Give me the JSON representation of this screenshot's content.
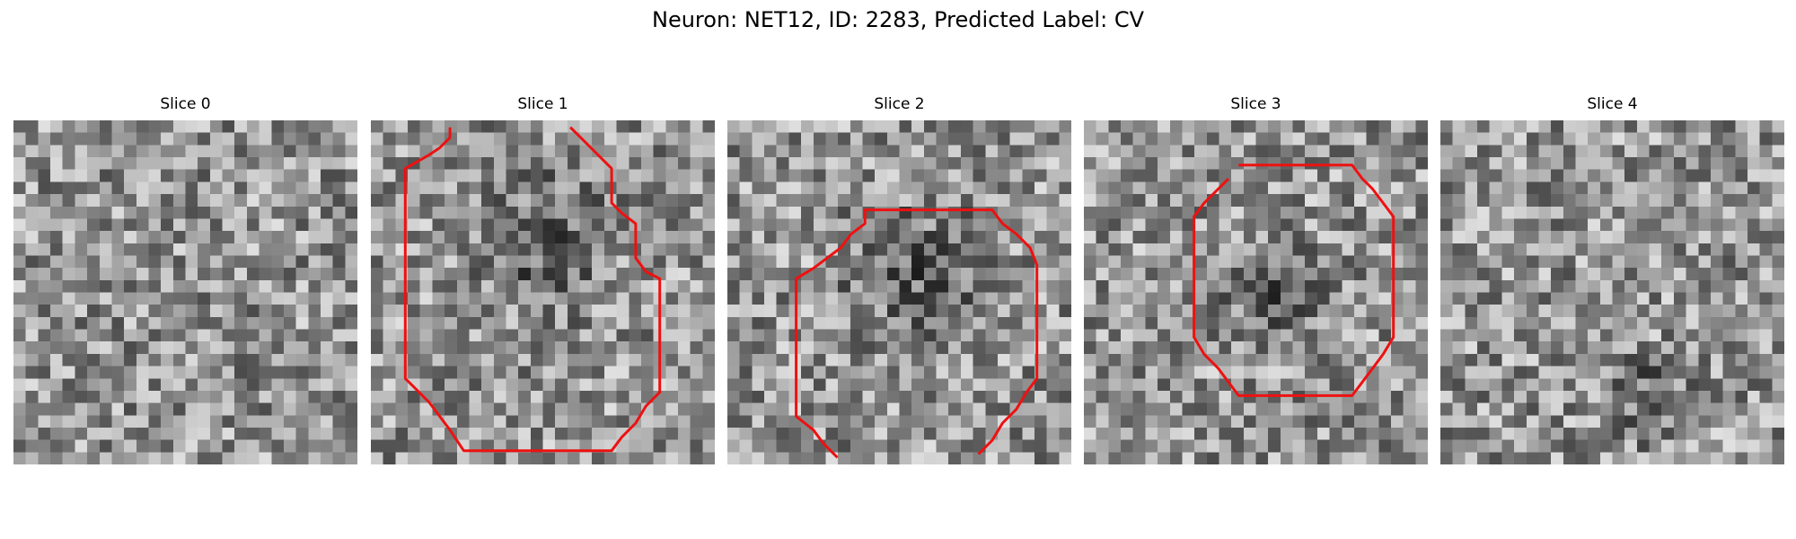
{
  "figure": {
    "title": "Neuron: NET12, ID: 2283, Predicted Label: CV",
    "outline_color": "#ee1111"
  },
  "slices": [
    {
      "title": "Slice 0",
      "dark_blob": null,
      "contour": null
    },
    {
      "title": "Slice 1",
      "dark_blob": [
        0.49,
        0.36,
        0.3
      ],
      "contour": [
        [
          0.23,
          0.02
        ],
        [
          0.23,
          0.05
        ],
        [
          0.2,
          0.08
        ],
        [
          0.17,
          0.1
        ],
        [
          0.1,
          0.14
        ],
        [
          0.1,
          0.75
        ],
        [
          0.13,
          0.78
        ],
        [
          0.17,
          0.82
        ],
        [
          0.2,
          0.86
        ],
        [
          0.23,
          0.9
        ],
        [
          0.27,
          0.96
        ],
        [
          0.7,
          0.96
        ],
        [
          0.73,
          0.92
        ],
        [
          0.77,
          0.88
        ],
        [
          0.8,
          0.83
        ],
        [
          0.84,
          0.79
        ],
        [
          0.84,
          0.46
        ],
        [
          0.8,
          0.44
        ],
        [
          0.77,
          0.4
        ],
        [
          0.77,
          0.3
        ],
        [
          0.73,
          0.27
        ],
        [
          0.7,
          0.24
        ],
        [
          0.7,
          0.14
        ],
        [
          0.66,
          0.1
        ],
        [
          0.63,
          0.07
        ],
        [
          0.58,
          0.02
        ]
      ]
    },
    {
      "title": "Slice 2",
      "dark_blob": [
        0.55,
        0.45,
        0.3
      ],
      "contour": [
        [
          0.32,
          0.98
        ],
        [
          0.28,
          0.94
        ],
        [
          0.25,
          0.9
        ],
        [
          0.2,
          0.86
        ],
        [
          0.2,
          0.46
        ],
        [
          0.25,
          0.43
        ],
        [
          0.29,
          0.4
        ],
        [
          0.33,
          0.37
        ],
        [
          0.36,
          0.33
        ],
        [
          0.4,
          0.3
        ],
        [
          0.4,
          0.26
        ],
        [
          0.77,
          0.26
        ],
        [
          0.8,
          0.3
        ],
        [
          0.84,
          0.33
        ],
        [
          0.88,
          0.37
        ],
        [
          0.9,
          0.42
        ],
        [
          0.9,
          0.75
        ],
        [
          0.87,
          0.79
        ],
        [
          0.84,
          0.84
        ],
        [
          0.8,
          0.88
        ],
        [
          0.77,
          0.93
        ],
        [
          0.73,
          0.97
        ]
      ]
    },
    {
      "title": "Slice 3",
      "dark_blob": [
        0.54,
        0.5,
        0.22
      ],
      "contour": [
        [
          0.45,
          0.13
        ],
        [
          0.78,
          0.13
        ],
        [
          0.81,
          0.17
        ],
        [
          0.84,
          0.2
        ],
        [
          0.87,
          0.24
        ],
        [
          0.9,
          0.28
        ],
        [
          0.9,
          0.63
        ],
        [
          0.87,
          0.68
        ],
        [
          0.84,
          0.72
        ],
        [
          0.81,
          0.76
        ],
        [
          0.78,
          0.8
        ],
        [
          0.45,
          0.8
        ],
        [
          0.42,
          0.76
        ],
        [
          0.39,
          0.72
        ],
        [
          0.35,
          0.68
        ],
        [
          0.32,
          0.63
        ],
        [
          0.32,
          0.28
        ],
        [
          0.35,
          0.24
        ],
        [
          0.39,
          0.2
        ],
        [
          0.42,
          0.17
        ]
      ]
    },
    {
      "title": "Slice 4",
      "dark_blob": [
        0.6,
        0.8,
        0.18
      ],
      "contour": null
    }
  ]
}
